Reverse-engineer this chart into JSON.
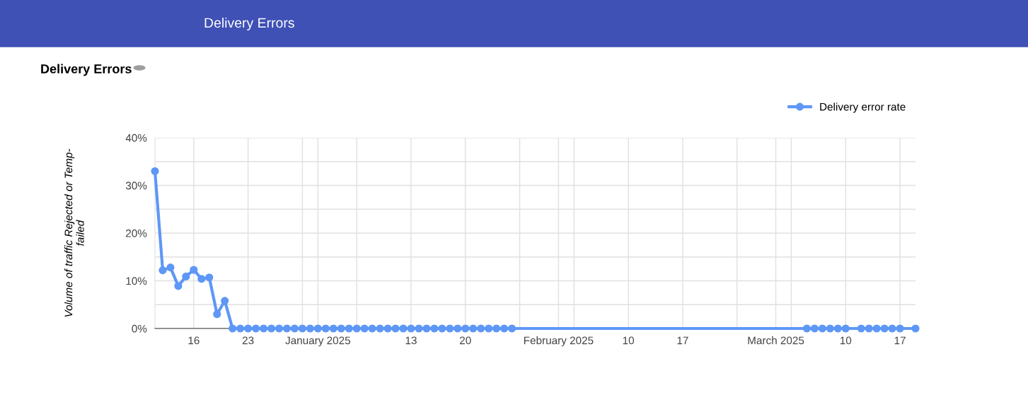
{
  "chart_data": {
    "type": "line",
    "title": "Delivery Errors",
    "annotations": [
      "Delivery Errors"
    ],
    "ylabel": "Volume of traffic Rejected or Temp-failed",
    "x": [
      "2024-12-11",
      "2024-12-12",
      "2024-12-13",
      "2024-12-14",
      "2024-12-15",
      "2024-12-16",
      "2024-12-17",
      "2024-12-18",
      "2024-12-19",
      "2024-12-20",
      "2024-12-21",
      "2024-12-22",
      "2024-12-23",
      "2024-12-24",
      "2024-12-25",
      "2024-12-26",
      "2024-12-27",
      "2024-12-28",
      "2024-12-29",
      "2024-12-30",
      "2024-12-31",
      "2025-01-01",
      "2025-01-02",
      "2025-01-03",
      "2025-01-04",
      "2025-01-05",
      "2025-01-06",
      "2025-01-07",
      "2025-01-08",
      "2025-01-09",
      "2025-01-10",
      "2025-01-11",
      "2025-01-12",
      "2025-01-13",
      "2025-01-14",
      "2025-01-15",
      "2025-01-16",
      "2025-01-17",
      "2025-01-18",
      "2025-01-19",
      "2025-01-20",
      "2025-01-21",
      "2025-01-22",
      "2025-01-23",
      "2025-01-24",
      "2025-01-25",
      "2025-01-26",
      "2025-03-05",
      "2025-03-06",
      "2025-03-07",
      "2025-03-08",
      "2025-03-09",
      "2025-03-10",
      "2025-03-12",
      "2025-03-13",
      "2025-03-14",
      "2025-03-15",
      "2025-03-16",
      "2025-03-17",
      "2025-03-19"
    ],
    "series": [
      {
        "name": "Delivery error rate",
        "color": "#5e97f6",
        "values": [
          33.0,
          12.2,
          12.8,
          8.9,
          10.9,
          12.3,
          10.4,
          10.7,
          3.0,
          5.8,
          0,
          0,
          0,
          0,
          0,
          0,
          0,
          0,
          0,
          0,
          0,
          0,
          0,
          0,
          0,
          0,
          0,
          0,
          0,
          0,
          0,
          0,
          0,
          0,
          0,
          0,
          0,
          0,
          0,
          0,
          0,
          0,
          0,
          0,
          0,
          0,
          0,
          0,
          0,
          0,
          0,
          0,
          0,
          0,
          0,
          0,
          0,
          0,
          0,
          0
        ]
      }
    ],
    "xlim": [
      "2024-12-11",
      "2025-03-19"
    ],
    "xticks": [
      {
        "value": "2024-12-16",
        "label": "16"
      },
      {
        "value": "2024-12-23",
        "label": "23"
      },
      {
        "value": "2024-12-30",
        "label": null
      },
      {
        "value": "2025-01-01",
        "label": "January 2025"
      },
      {
        "value": "2025-01-06",
        "label": null
      },
      {
        "value": "2025-01-13",
        "label": "13"
      },
      {
        "value": "2025-01-20",
        "label": "20"
      },
      {
        "value": "2025-01-27",
        "label": null
      },
      {
        "value": "2025-02-01",
        "label": "February 2025"
      },
      {
        "value": "2025-02-03",
        "label": null
      },
      {
        "value": "2025-02-10",
        "label": "10"
      },
      {
        "value": "2025-02-17",
        "label": "17"
      },
      {
        "value": "2025-02-24",
        "label": null
      },
      {
        "value": "2025-03-01",
        "label": "March 2025"
      },
      {
        "value": "2025-03-03",
        "label": null
      },
      {
        "value": "2025-03-10",
        "label": "10"
      },
      {
        "value": "2025-03-17",
        "label": "17"
      }
    ],
    "ylim": [
      0,
      40
    ],
    "yticks": [
      {
        "value": 0,
        "label": "0%"
      },
      {
        "value": 5,
        "label": null
      },
      {
        "value": 10,
        "label": "10%"
      },
      {
        "value": 15,
        "label": null
      },
      {
        "value": 20,
        "label": "20%"
      },
      {
        "value": 25,
        "label": null
      },
      {
        "value": 30,
        "label": "30%"
      },
      {
        "value": 35,
        "label": null
      },
      {
        "value": 40,
        "label": "40%"
      }
    ],
    "grid": true,
    "legend": "top right",
    "marker": "circle",
    "line_style": "solid"
  }
}
